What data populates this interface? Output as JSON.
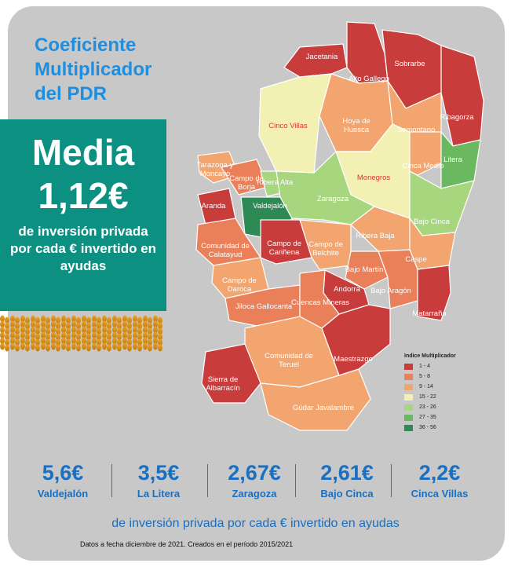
{
  "title": [
    "Coeficiente",
    "Multiplicador",
    "del PDR"
  ],
  "media": {
    "heading": "Media",
    "value": "1,12€",
    "desc": "de inversión privada por cada € invertido en ayudas"
  },
  "legend": {
    "title": "Indice Multiplicador",
    "items": [
      {
        "label": "1 - 4",
        "color": "#c83c3c"
      },
      {
        "label": "5 - 8",
        "color": "#e9805a"
      },
      {
        "label": "9 - 14",
        "color": "#f2a56e"
      },
      {
        "label": "15 - 22",
        "color": "#f3f0b4"
      },
      {
        "label": "23 - 26",
        "color": "#a8d67e"
      },
      {
        "label": "27 - 35",
        "color": "#6ab860"
      },
      {
        "label": "36 - 56",
        "color": "#2e8a55"
      }
    ]
  },
  "regions": [
    {
      "name": "Jacetania",
      "color": "#c83c3c"
    },
    {
      "name": "Alto Gallego",
      "color": "#c83c3c"
    },
    {
      "name": "Sobrarbe",
      "color": "#c83c3c"
    },
    {
      "name": "Ribagorza",
      "color": "#c83c3c"
    },
    {
      "name": "Cinco Villas",
      "color": "#f3f0b4"
    },
    {
      "name": "Hoya de Huesca",
      "color": "#f2a56e"
    },
    {
      "name": "Somontano",
      "color": "#f2a56e"
    },
    {
      "name": "Tarazona y Moncayo",
      "color": "#f2a56e"
    },
    {
      "name": "Campo de Borja",
      "color": "#e9805a"
    },
    {
      "name": "Ribera Alta",
      "color": "#a8d67e"
    },
    {
      "name": "Monegros",
      "color": "#f3f0b4"
    },
    {
      "name": "Cinca Medio",
      "color": "#f2a56e"
    },
    {
      "name": "Litera",
      "color": "#6ab860"
    },
    {
      "name": "Aranda",
      "color": "#c83c3c"
    },
    {
      "name": "Valdejalón",
      "color": "#2e8a55"
    },
    {
      "name": "Zaragoza",
      "color": "#a8d67e"
    },
    {
      "name": "Bajo Cinca",
      "color": "#a8d67e"
    },
    {
      "name": "Comunidad de Calatayud",
      "color": "#e9805a"
    },
    {
      "name": "Campo de Cariñena",
      "color": "#c83c3c"
    },
    {
      "name": "Campo de Belchite",
      "color": "#f2a56e"
    },
    {
      "name": "Ribera Baja",
      "color": "#f2a56e"
    },
    {
      "name": "Caspe",
      "color": "#f2a56e"
    },
    {
      "name": "Campo de Daroca",
      "color": "#f2a56e"
    },
    {
      "name": "Bajo Martín",
      "color": "#e9805a"
    },
    {
      "name": "Andorra",
      "color": "#c83c3c"
    },
    {
      "name": "Bajo Aragón",
      "color": "#e9805a"
    },
    {
      "name": "Jiloca Gallocanta",
      "color": "#e9805a"
    },
    {
      "name": "Cuencas Mineras",
      "color": "#e9805a"
    },
    {
      "name": "Matarraña",
      "color": "#c83c3c"
    },
    {
      "name": "Comunidad de Teruel",
      "color": "#f2a56e"
    },
    {
      "name": "Maestrazgo",
      "color": "#c83c3c"
    },
    {
      "name": "Sierra de Albarracín",
      "color": "#c83c3c"
    },
    {
      "name": "Gúdar Javalambre",
      "color": "#f2a56e"
    }
  ],
  "stats": [
    {
      "value": "5,6€",
      "label": "Valdejalón"
    },
    {
      "value": "3,5€",
      "label": "La Litera"
    },
    {
      "value": "2,67€",
      "label": "Zaragoza"
    },
    {
      "value": "2,61€",
      "label": "Bajo Cinca"
    },
    {
      "value": "2,2€",
      "label": "Cinca Villas"
    }
  ],
  "footer": "de inversión privada por cada € invertido en ayudas",
  "note": "Datos a fecha diciembre de 2021. Creados en el período 2015/2021"
}
